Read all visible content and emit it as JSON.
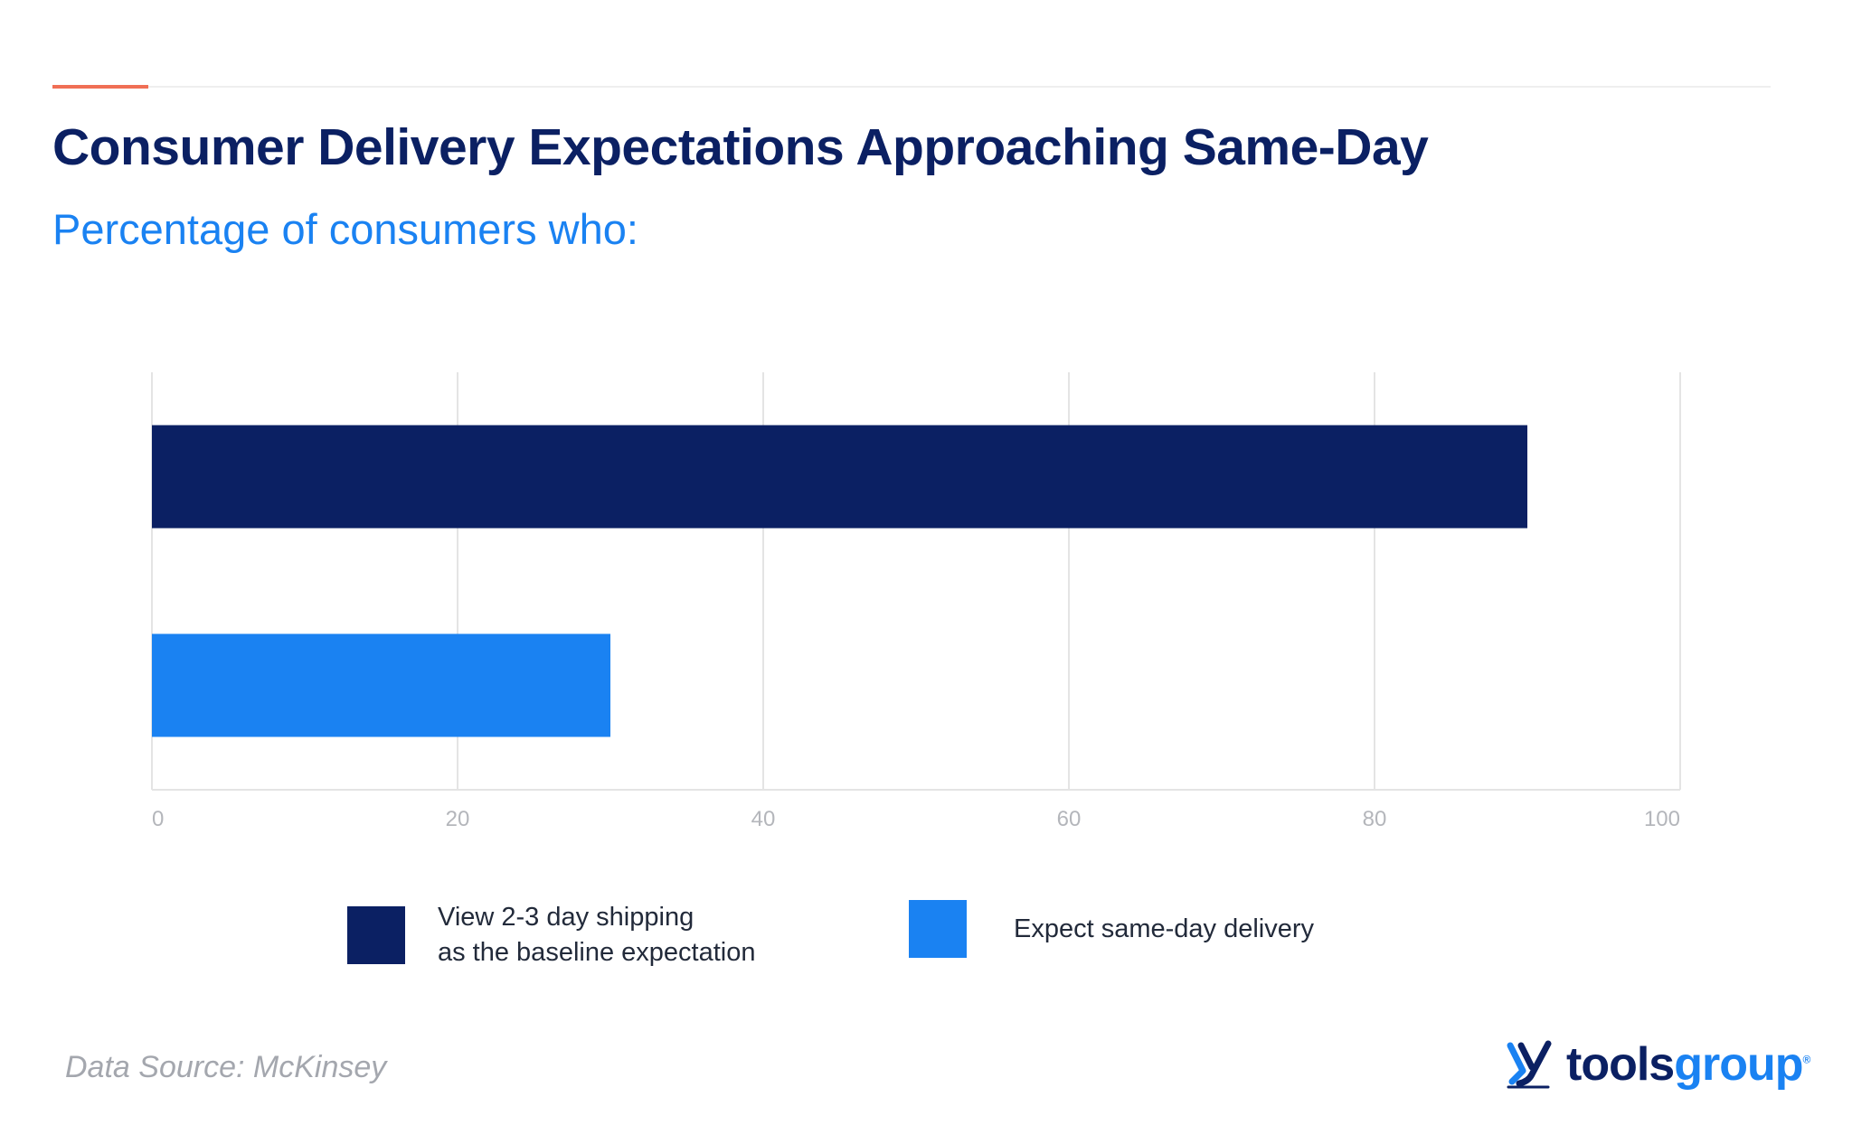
{
  "header": {
    "title": "Consumer Delivery Expectations Approaching Same-Day",
    "subtitle": "Percentage of consumers who:"
  },
  "colors": {
    "accent": "#f06f55",
    "navy": "#0b2063",
    "blue": "#1a82f2",
    "grid": "#e4e4e4"
  },
  "chart_data": {
    "type": "bar",
    "orientation": "horizontal",
    "categories": [
      "View 2-3 day shipping as the baseline expectation",
      "Expect same-day delivery"
    ],
    "values": [
      90,
      30
    ],
    "bar_colors": [
      "#0b2063",
      "#1a82f2"
    ],
    "xlim": [
      0,
      100
    ],
    "xticks": [
      "0",
      "20",
      "40",
      "60",
      "80",
      "100"
    ],
    "grid": true,
    "legend_position": "bottom"
  },
  "legend": [
    {
      "label": "View 2-3 day shipping\nas the baseline expectation",
      "color": "#0b2063"
    },
    {
      "label": "Expect same-day delivery",
      "color": "#1a82f2"
    }
  ],
  "footer": {
    "source": "Data Source: McKinsey",
    "brand_part1": "tools",
    "brand_part2": "group",
    "brand_reg": "®",
    "brand_icon": "toolsgroup-logo-icon"
  }
}
